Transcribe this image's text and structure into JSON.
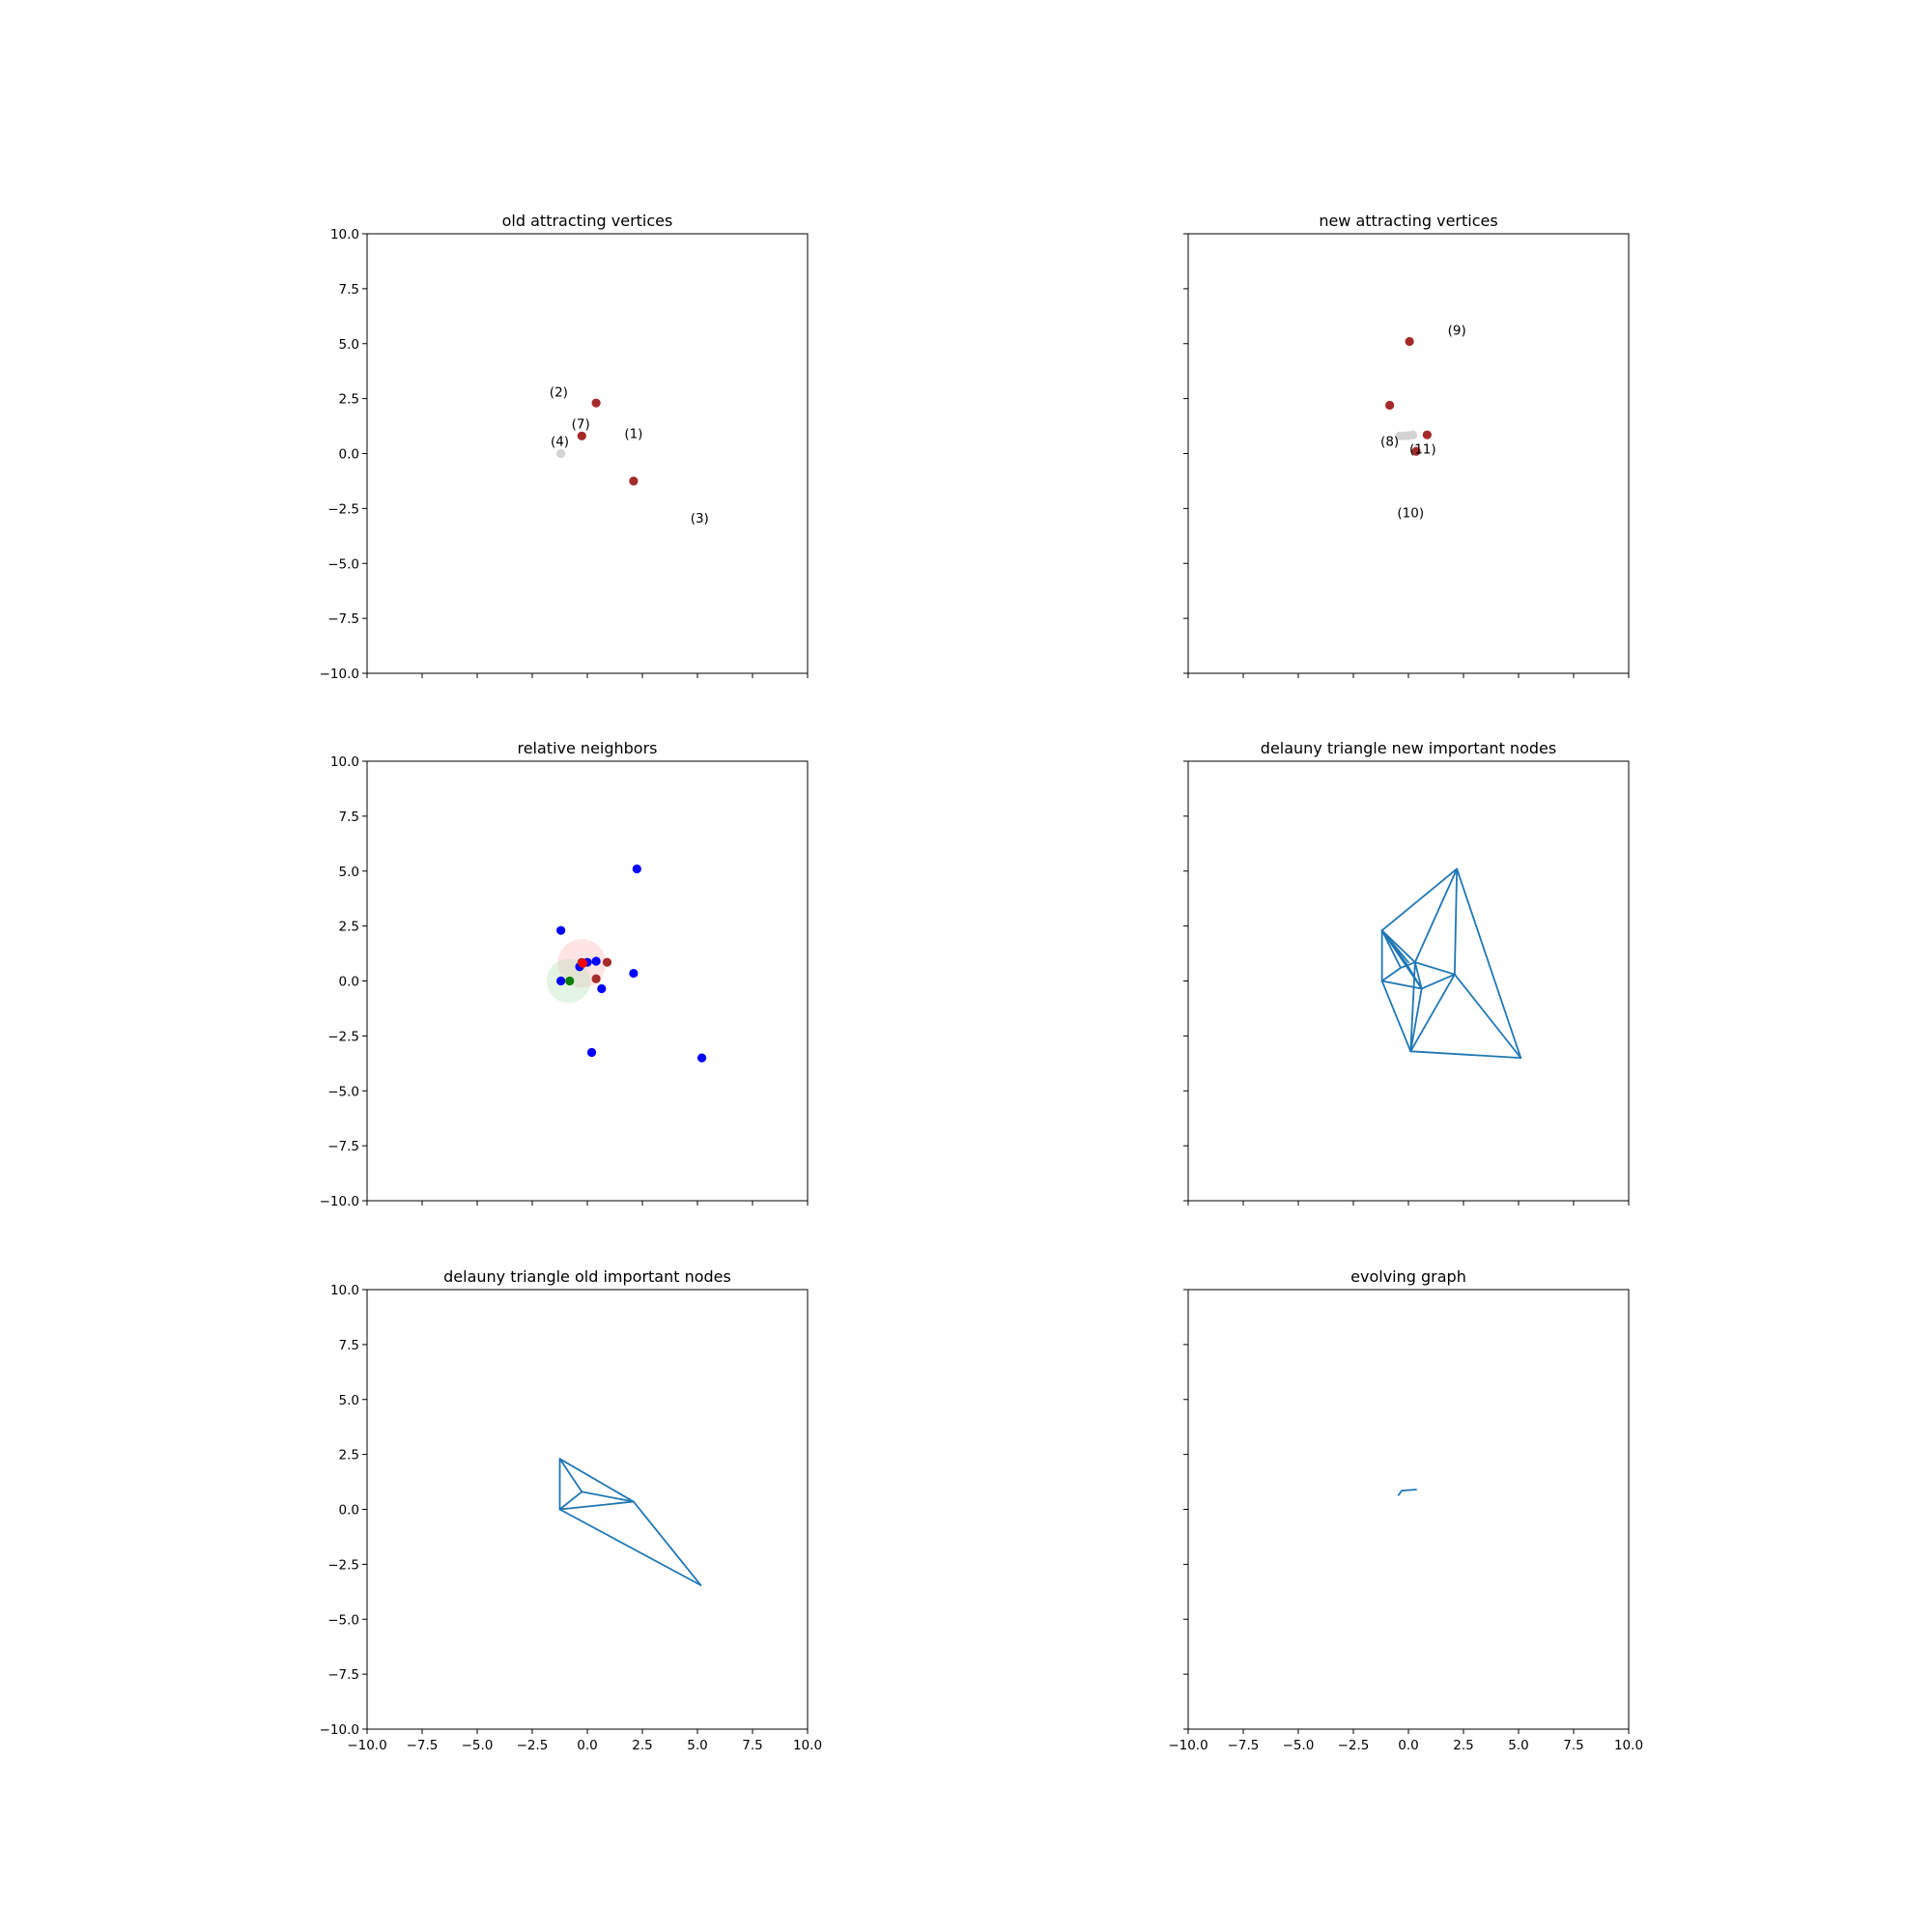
{
  "figure_title": "",
  "chart_data": [
    {
      "type": "scatter",
      "title": "old attracting vertices",
      "xlim": [
        -10,
        10
      ],
      "ylim": [
        -10,
        10
      ],
      "yticks": [
        "10.0",
        "7.5",
        "5.0",
        "2.5",
        "0.0",
        "−2.5",
        "−5.0",
        "−7.5",
        "−10.0"
      ],
      "xticks": [],
      "series": [
        {
          "color": "#a52a2a",
          "points": [
            [
              0.4,
              2.3
            ],
            [
              -0.25,
              0.8
            ],
            [
              2.1,
              -1.25
            ]
          ]
        },
        {
          "color": "#d3d3d3",
          "points": [
            [
              -1.2,
              0.0
            ]
          ]
        }
      ],
      "annotations": [
        {
          "text": "(2)",
          "x": -1.3,
          "y": 2.6
        },
        {
          "text": "(7)",
          "x": -0.3,
          "y": 1.15
        },
        {
          "text": "(1)",
          "x": 2.1,
          "y": 0.7
        },
        {
          "text": "(4)",
          "x": -1.25,
          "y": 0.35
        },
        {
          "text": "(3)",
          "x": 5.1,
          "y": -3.15
        }
      ],
      "segments": []
    },
    {
      "type": "scatter",
      "title": "new attracting vertices",
      "xlim": [
        -10,
        10
      ],
      "ylim": [
        -10,
        10
      ],
      "yticks": [],
      "xticks": [],
      "series": [
        {
          "color": "#a52a2a",
          "points": [
            [
              0.05,
              5.1
            ],
            [
              -0.85,
              2.2
            ],
            [
              0.85,
              0.85
            ],
            [
              0.35,
              0.1
            ]
          ]
        },
        {
          "color": "#d3d3d3",
          "points": [
            [
              -0.4,
              0.8
            ],
            [
              -0.2,
              0.8
            ],
            [
              0.0,
              0.82
            ],
            [
              0.2,
              0.85
            ]
          ]
        }
      ],
      "annotations": [
        {
          "text": "(9)",
          "x": 2.2,
          "y": 5.4
        },
        {
          "text": "(8)",
          "x": -0.85,
          "y": 0.35
        },
        {
          "text": "(11)",
          "x": 0.65,
          "y": 0.0
        },
        {
          "text": "(10)",
          "x": 0.1,
          "y": -2.9
        }
      ],
      "segments": []
    },
    {
      "type": "scatter",
      "title": "relative neighbors",
      "xlim": [
        -10,
        10
      ],
      "ylim": [
        -10,
        10
      ],
      "yticks": [
        "10.0",
        "7.5",
        "5.0",
        "2.5",
        "0.0",
        "−2.5",
        "−5.0",
        "−7.5",
        "−10.0"
      ],
      "xticks": [],
      "circles": [
        {
          "x": -0.25,
          "y": 0.8,
          "r": 1.1,
          "color": "#ffb3b3"
        },
        {
          "x": -0.85,
          "y": 0.0,
          "r": 1.0,
          "color": "#b3e0b3"
        }
      ],
      "series": [
        {
          "color": "#0000ff",
          "points": [
            [
              2.25,
              5.1
            ],
            [
              -1.2,
              2.3
            ],
            [
              2.1,
              0.35
            ],
            [
              0.65,
              -0.35
            ],
            [
              0.2,
              -3.25
            ],
            [
              5.2,
              -3.5
            ],
            [
              -1.2,
              0.0
            ],
            [
              -0.35,
              0.65
            ],
            [
              0.0,
              0.85
            ],
            [
              0.4,
              0.9
            ]
          ]
        },
        {
          "color": "#a52a2a",
          "points": [
            [
              0.9,
              0.85
            ],
            [
              0.4,
              0.1
            ],
            [
              -0.25,
              0.85
            ]
          ]
        },
        {
          "color": "#ff0000",
          "points": [
            [
              -0.2,
              0.8
            ]
          ]
        },
        {
          "color": "#008000",
          "points": [
            [
              -0.8,
              0.0
            ]
          ]
        }
      ],
      "annotations": [],
      "segments": []
    },
    {
      "type": "line",
      "title": "delauny triangle new important nodes",
      "xlim": [
        -10,
        10
      ],
      "ylim": [
        -10,
        10
      ],
      "yticks": [],
      "xticks": [],
      "series": [],
      "annotations": [],
      "line_color": "#1f77b4",
      "segments": [
        [
          [
            -1.2,
            2.3
          ],
          [
            2.2,
            5.1
          ]
        ],
        [
          [
            2.2,
            5.1
          ],
          [
            5.1,
            -3.5
          ]
        ],
        [
          [
            5.1,
            -3.5
          ],
          [
            0.1,
            -3.2
          ]
        ],
        [
          [
            0.1,
            -3.2
          ],
          [
            -1.2,
            0.0
          ]
        ],
        [
          [
            -1.2,
            0.0
          ],
          [
            -1.2,
            2.3
          ]
        ],
        [
          [
            2.2,
            5.1
          ],
          [
            2.1,
            0.3
          ]
        ],
        [
          [
            2.2,
            5.1
          ],
          [
            0.3,
            0.85
          ]
        ],
        [
          [
            2.1,
            0.3
          ],
          [
            5.1,
            -3.5
          ]
        ],
        [
          [
            2.1,
            0.3
          ],
          [
            0.1,
            -3.2
          ]
        ],
        [
          [
            2.1,
            0.3
          ],
          [
            0.3,
            0.85
          ]
        ],
        [
          [
            2.1,
            0.3
          ],
          [
            0.6,
            -0.35
          ]
        ],
        [
          [
            0.6,
            -0.35
          ],
          [
            0.1,
            -3.2
          ]
        ],
        [
          [
            -1.2,
            2.3
          ],
          [
            0.3,
            0.85
          ]
        ],
        [
          [
            -1.2,
            2.3
          ],
          [
            -0.35,
            0.6
          ]
        ],
        [
          [
            -1.2,
            2.3
          ],
          [
            0.0,
            0.85
          ]
        ],
        [
          [
            -1.2,
            2.3
          ],
          [
            0.6,
            -0.35
          ]
        ],
        [
          [
            -1.2,
            2.3
          ],
          [
            -0.1,
            0.8
          ]
        ],
        [
          [
            -1.2,
            0.0
          ],
          [
            -0.35,
            0.6
          ]
        ],
        [
          [
            -1.2,
            0.0
          ],
          [
            0.6,
            -0.35
          ]
        ],
        [
          [
            0.3,
            0.85
          ],
          [
            0.6,
            -0.35
          ]
        ],
        [
          [
            -0.35,
            0.6
          ],
          [
            0.3,
            0.85
          ]
        ],
        [
          [
            -0.1,
            0.8
          ],
          [
            0.6,
            -0.35
          ]
        ],
        [
          [
            0.3,
            0.85
          ],
          [
            0.1,
            -3.2
          ]
        ]
      ]
    },
    {
      "type": "line",
      "title": "delauny triangle old important nodes",
      "xlim": [
        -10,
        10
      ],
      "ylim": [
        -10,
        10
      ],
      "yticks": [
        "10.0",
        "7.5",
        "5.0",
        "2.5",
        "0.0",
        "−2.5",
        "−5.0",
        "−7.5",
        "−10.0"
      ],
      "xticks": [
        "−10.0",
        "−7.5",
        "−5.0",
        "−2.5",
        "0.0",
        "2.5",
        "5.0",
        "7.5",
        "10.0"
      ],
      "series": [],
      "annotations": [],
      "line_color": "#1f77b4",
      "segments": [
        [
          [
            -1.25,
            2.3
          ],
          [
            2.1,
            0.35
          ]
        ],
        [
          [
            2.1,
            0.35
          ],
          [
            5.15,
            -3.45
          ]
        ],
        [
          [
            5.15,
            -3.45
          ],
          [
            -1.25,
            0.0
          ]
        ],
        [
          [
            -1.25,
            0.0
          ],
          [
            -1.25,
            2.3
          ]
        ],
        [
          [
            -1.25,
            2.3
          ],
          [
            -0.25,
            0.8
          ]
        ],
        [
          [
            -0.25,
            0.8
          ],
          [
            2.1,
            0.35
          ]
        ],
        [
          [
            -1.25,
            0.0
          ],
          [
            -0.25,
            0.8
          ]
        ],
        [
          [
            -1.25,
            0.0
          ],
          [
            2.1,
            0.35
          ]
        ]
      ]
    },
    {
      "type": "line",
      "title": "evolving graph",
      "xlim": [
        -10,
        10
      ],
      "ylim": [
        -10,
        10
      ],
      "yticks": [],
      "xticks": [
        "−10.0",
        "−7.5",
        "−5.0",
        "−2.5",
        "0.0",
        "2.5",
        "5.0",
        "7.5",
        "10.0"
      ],
      "series": [],
      "annotations": [],
      "line_color": "#1f77b4",
      "segments": [
        [
          [
            -0.45,
            0.65
          ],
          [
            -0.3,
            0.85
          ]
        ],
        [
          [
            -0.3,
            0.85
          ],
          [
            0.35,
            0.9
          ]
        ]
      ]
    }
  ]
}
